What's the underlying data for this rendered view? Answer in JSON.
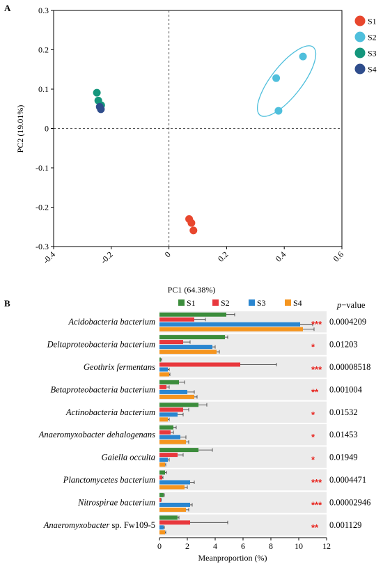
{
  "chart_data": [
    {
      "type": "scatter",
      "panel_label": "A",
      "xlabel": "PC1 (64.38%)",
      "ylabel": "PC2 (19.01%)",
      "xlim": [
        -0.4,
        0.6
      ],
      "ylim": [
        -0.3,
        0.3
      ],
      "xticks": [
        "-0.4",
        "-0.2",
        "0",
        "0.2",
        "0.4",
        "0.6"
      ],
      "yticks": [
        "0.3",
        "0.2",
        "0.1",
        "0",
        "-0.1",
        "-0.2",
        "-0.3"
      ],
      "legend_position": "right",
      "series": [
        {
          "name": "S1",
          "color": "#e8472e",
          "x": [
            0.07,
            0.078,
            0.085
          ],
          "y": [
            -0.23,
            -0.24,
            -0.259
          ]
        },
        {
          "name": "S2",
          "color": "#4fbfdc",
          "x": [
            0.372,
            0.38,
            0.465
          ],
          "y": [
            0.128,
            0.045,
            0.183
          ],
          "ellipse": true
        },
        {
          "name": "S3",
          "color": "#14967c",
          "x": [
            -0.25,
            -0.245,
            -0.235
          ],
          "y": [
            0.091,
            0.071,
            0.059
          ]
        },
        {
          "name": "S4",
          "color": "#2f4d8c",
          "x": [
            -0.24,
            -0.236
          ],
          "y": [
            0.055,
            0.049
          ]
        }
      ]
    },
    {
      "type": "bar",
      "orientation": "horizontal",
      "panel_label": "B",
      "xlabel": "Meanproportion (%)",
      "xlim": [
        0,
        12
      ],
      "xticks": [
        "0",
        "2",
        "4",
        "6",
        "8",
        "10",
        "12"
      ],
      "pvalue_header": "p−value",
      "legend_position": "top",
      "series_names": [
        "S1",
        "S2",
        "S3",
        "S4"
      ],
      "series_colors": [
        "#3c8d3c",
        "#e8383d",
        "#2a86d0",
        "#f5951f"
      ],
      "categories": [
        {
          "name": "Acidobacteria bacterium",
          "values": [
            4.8,
            2.5,
            10.1,
            10.3
          ],
          "errors": [
            0.6,
            0.8,
            0.9,
            0.8
          ],
          "stars": "***",
          "p_value": "0.0004209"
        },
        {
          "name": "Deltaproteobacteria bacterium",
          "values": [
            4.7,
            1.7,
            3.8,
            4.1
          ],
          "errors": [
            0.2,
            0.5,
            0.2,
            0.2
          ],
          "stars": "*",
          "p_value": "0.01203"
        },
        {
          "name": "Geothrix fermentans",
          "values": [
            0.1,
            5.8,
            0.6,
            0.7
          ],
          "errors": [
            0.05,
            2.6,
            0.1,
            0.05
          ],
          "stars": "***",
          "p_value": "0.00008518"
        },
        {
          "name": "Betaproteobacteria bacterium",
          "values": [
            1.4,
            0.5,
            2.0,
            2.5
          ],
          "errors": [
            0.4,
            0.2,
            0.5,
            0.2
          ],
          "stars": "**",
          "p_value": "0.001004"
        },
        {
          "name": "Actinobacteria bacterium",
          "values": [
            2.8,
            1.7,
            1.3,
            0.6
          ],
          "errors": [
            0.6,
            0.4,
            0.4,
            0.1
          ],
          "stars": "*",
          "p_value": "0.01532"
        },
        {
          "name": "Anaeromyxobacter dehalogenans",
          "values": [
            1.0,
            0.8,
            1.5,
            1.9
          ],
          "errors": [
            0.2,
            0.2,
            0.4,
            0.2
          ],
          "stars": "*",
          "p_value": "0.01453"
        },
        {
          "name": "Gaiella occulta",
          "values": [
            2.8,
            1.3,
            0.6,
            0.4
          ],
          "errors": [
            1.0,
            0.4,
            0.1,
            0.05
          ],
          "stars": "*",
          "p_value": "0.01949"
        },
        {
          "name": "Planctomycetes bacterium",
          "values": [
            0.4,
            0.2,
            2.2,
            1.8
          ],
          "errors": [
            0.1,
            0.05,
            0.3,
            0.2
          ],
          "stars": "***",
          "p_value": "0.0004471"
        },
        {
          "name": "Nitrospirae bacterium",
          "values": [
            0.3,
            0.1,
            2.2,
            1.9
          ],
          "errors": [
            0.05,
            0.02,
            0.15,
            0.2
          ],
          "stars": "***",
          "p_value": "0.00002946"
        },
        {
          "name": "Anaeromyxobacter sp. Fw109-5",
          "values": [
            1.3,
            2.2,
            0.3,
            0.4
          ],
          "errors": [
            0.1,
            2.7,
            0.05,
            0.05
          ],
          "stars": "**",
          "p_value": "0.001129"
        }
      ]
    }
  ]
}
